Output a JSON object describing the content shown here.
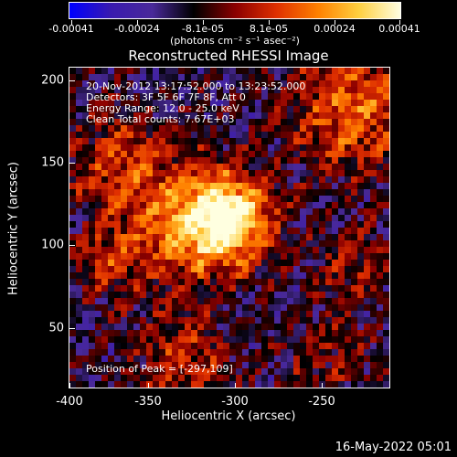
{
  "colorbar": {
    "tick_labels": [
      "-0.00041",
      "-0.00024",
      "-8.1e-05",
      "8.1e-05",
      "0.00024",
      "0.00041"
    ],
    "units": "(photons cm⁻² s⁻¹ asec⁻²)",
    "range": [
      -0.00041,
      0.00041
    ]
  },
  "plot": {
    "title": "Reconstructed RHESSI Image",
    "x_label": "Heliocentric X (arcsec)",
    "y_label": "Heliocentric Y (arcsec)",
    "x_ticks": [
      "-400",
      "-350",
      "-300",
      "-250"
    ],
    "y_ticks": [
      "200",
      "150",
      "100",
      "50"
    ],
    "xlim": [
      -400,
      -215
    ],
    "ylim": [
      15,
      207
    ]
  },
  "annotations": {
    "time": "20-Nov-2012 13:17:52.000 to 13:23:52.000",
    "detectors": "Detectors: 3F 5F 6F 7F 8F, Att 0",
    "energy": "Energy Range: 12.0 - 25.0 keV",
    "clean": "Clean     Total counts: 7.67E+03",
    "peak": "Position of Peak = [-297,109]"
  },
  "footer": {
    "date": "16-May-2022 05:01"
  },
  "colors": {
    "cmap": [
      "#0000ff",
      "#3a1bb0",
      "#4a2a9a",
      "#000000",
      "#8b0000",
      "#e03000",
      "#ff8000",
      "#ffd040",
      "#ffffe0"
    ]
  }
}
